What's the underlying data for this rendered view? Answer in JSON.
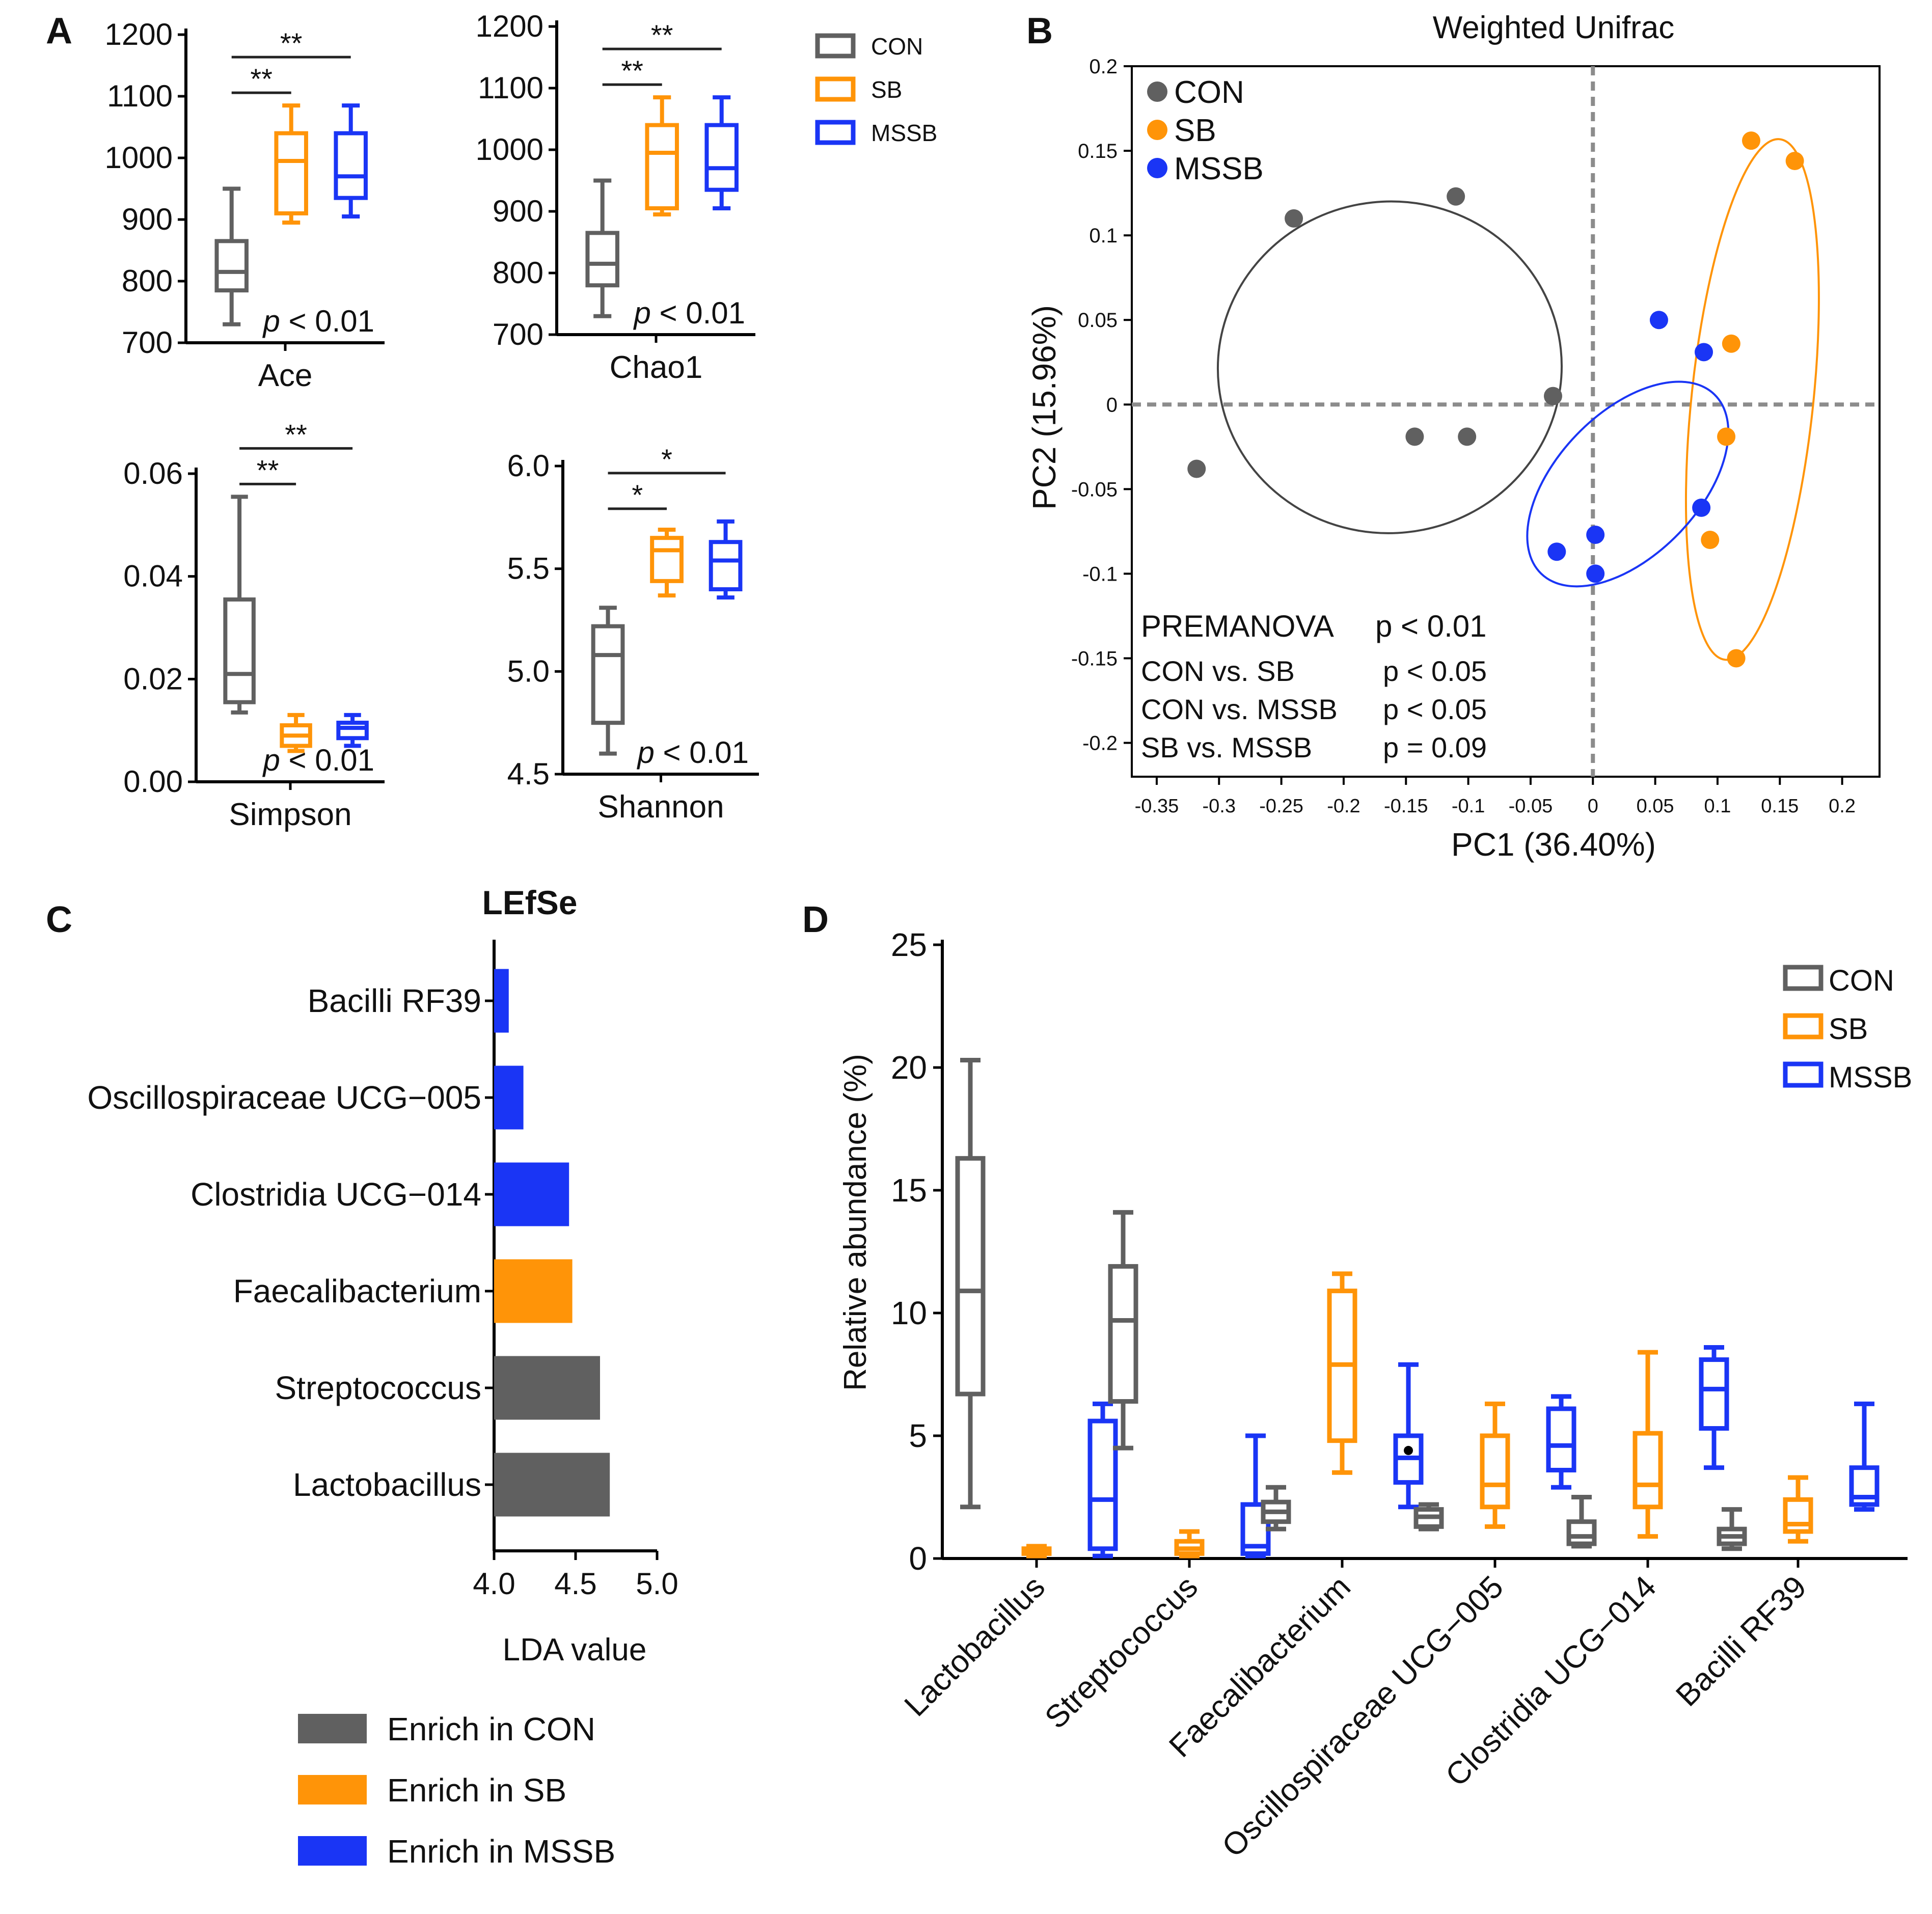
{
  "colors": {
    "CON": "#606060",
    "SB": "#FF9408",
    "MSSB": "#1A35F5",
    "axis": "#000000",
    "grid_line": "#8c8c8c"
  },
  "panel_labels": {
    "a": "A",
    "b": "B",
    "c": "C",
    "d": "D"
  },
  "legend_a": {
    "items": [
      {
        "name": "CON",
        "color": "#606060"
      },
      {
        "name": "SB",
        "color": "#FF9408"
      },
      {
        "name": "MSSB",
        "color": "#1A35F5"
      }
    ]
  },
  "legend_d": {
    "items": [
      {
        "name": "CON",
        "color": "#606060"
      },
      {
        "name": "SB",
        "color": "#FF9408"
      },
      {
        "name": "MSSB",
        "color": "#1A35F5"
      }
    ]
  },
  "chart_data": [
    {
      "type": "boxplot",
      "title": "",
      "xlabel": "Ace",
      "ylabel": "",
      "ylim": [
        700,
        1200
      ],
      "yticks": [
        "700",
        "800",
        "900",
        "1000",
        "1100",
        "1200"
      ],
      "pvalue": {
        "p": "p",
        "text": " < 0.01"
      },
      "groups": [
        {
          "name": "CON",
          "min": 730,
          "q1": 785,
          "median": 815,
          "q3": 865,
          "max": 950
        },
        {
          "name": "SB",
          "min": 895,
          "q1": 910,
          "median": 995,
          "q3": 1040,
          "max": 1085
        },
        {
          "name": "MSSB",
          "min": 905,
          "q1": 935,
          "median": 970,
          "q3": 1040,
          "max": 1085
        }
      ],
      "significance": [
        {
          "from": "CON",
          "to": "SB",
          "label": "**"
        },
        {
          "from": "CON",
          "to": "MSSB",
          "label": "**"
        }
      ]
    },
    {
      "type": "boxplot",
      "title": "",
      "xlabel": "Chao1",
      "ylabel": "",
      "ylim": [
        700,
        1200
      ],
      "yticks": [
        "700",
        "800",
        "900",
        "1000",
        "1100",
        "1200"
      ],
      "pvalue": {
        "p": "p",
        "text": " < 0.01"
      },
      "groups": [
        {
          "name": "CON",
          "min": 730,
          "q1": 780,
          "median": 815,
          "q3": 865,
          "max": 950
        },
        {
          "name": "SB",
          "min": 895,
          "q1": 905,
          "median": 995,
          "q3": 1040,
          "max": 1085
        },
        {
          "name": "MSSB",
          "min": 905,
          "q1": 935,
          "median": 970,
          "q3": 1040,
          "max": 1085
        }
      ],
      "significance": [
        {
          "from": "CON",
          "to": "SB",
          "label": "**"
        },
        {
          "from": "CON",
          "to": "MSSB",
          "label": "**"
        }
      ]
    },
    {
      "type": "boxplot",
      "title": "",
      "xlabel": "Simpson",
      "ylabel": "",
      "ylim": [
        0.0,
        0.06
      ],
      "yticks": [
        "0.00",
        "0.02",
        "0.04",
        "0.06"
      ],
      "pvalue": {
        "p": "p",
        "text": " < 0.01"
      },
      "groups": [
        {
          "name": "CON",
          "min": 0.0135,
          "q1": 0.0155,
          "median": 0.021,
          "q3": 0.0355,
          "max": 0.0555
        },
        {
          "name": "SB",
          "min": 0.006,
          "q1": 0.007,
          "median": 0.009,
          "q3": 0.011,
          "max": 0.013
        },
        {
          "name": "MSSB",
          "min": 0.007,
          "q1": 0.0085,
          "median": 0.0105,
          "q3": 0.0115,
          "max": 0.013
        }
      ],
      "significance": [
        {
          "from": "CON",
          "to": "SB",
          "label": "**"
        },
        {
          "from": "CON",
          "to": "MSSB",
          "label": "**"
        }
      ]
    },
    {
      "type": "boxplot",
      "title": "",
      "xlabel": "Shannon",
      "ylabel": "",
      "ylim": [
        4.5,
        6.0
      ],
      "yticks": [
        "4.5",
        "5.0",
        "5.5",
        "6.0"
      ],
      "pvalue": {
        "p": "p",
        "text": " < 0.01"
      },
      "groups": [
        {
          "name": "CON",
          "min": 4.6,
          "q1": 4.75,
          "median": 5.08,
          "q3": 5.22,
          "max": 5.31
        },
        {
          "name": "SB",
          "min": 5.37,
          "q1": 5.44,
          "median": 5.59,
          "q3": 5.65,
          "max": 5.69
        },
        {
          "name": "MSSB",
          "min": 5.36,
          "q1": 5.4,
          "median": 5.54,
          "q3": 5.63,
          "max": 5.73
        }
      ],
      "significance": [
        {
          "from": "CON",
          "to": "SB",
          "label": "*"
        },
        {
          "from": "CON",
          "to": "MSSB",
          "label": "*"
        }
      ]
    },
    {
      "type": "scatter",
      "title": "Weighted Unifrac",
      "xlabel": "PC1 (36.40%)",
      "ylabel": "PC2 (15.96%)",
      "xlim": [
        -0.37,
        0.23
      ],
      "ylim": [
        -0.22,
        0.2
      ],
      "xticks": [
        "-0.35",
        "-0.3",
        "-0.25",
        "-0.2",
        "-0.15",
        "-0.1",
        "-0.05",
        "0",
        "0.05",
        "0.1",
        "0.15",
        "0.2"
      ],
      "yticks": [
        "0.2",
        "0.15",
        "0.1",
        "0.05",
        "0",
        "-0.05",
        "-0.1",
        "-0.15",
        "-0.2"
      ],
      "series": [
        {
          "name": "CON",
          "points": [
            [
              -0.24,
              0.11
            ],
            [
              -0.11,
              0.123
            ],
            [
              -0.032,
              0.005
            ],
            [
              -0.143,
              -0.019
            ],
            [
              -0.101,
              -0.019
            ],
            [
              -0.318,
              -0.038
            ]
          ]
        },
        {
          "name": "SB",
          "points": [
            [
              0.127,
              0.156
            ],
            [
              0.162,
              0.144
            ],
            [
              0.111,
              0.036
            ],
            [
              0.107,
              -0.019
            ],
            [
              0.094,
              -0.08
            ],
            [
              0.115,
              -0.15
            ]
          ]
        },
        {
          "name": "MSSB",
          "points": [
            [
              0.053,
              0.05
            ],
            [
              0.089,
              0.031
            ],
            [
              0.087,
              -0.061
            ],
            [
              -0.029,
              -0.087
            ],
            [
              0.002,
              -0.077
            ],
            [
              0.002,
              -0.1
            ]
          ]
        }
      ],
      "ellipses": [
        {
          "name": "CON",
          "cx": -0.163,
          "cy": 0.022,
          "rx": 0.138,
          "ry": 0.098,
          "angle": -6
        },
        {
          "name": "SB",
          "cx": 0.128,
          "cy": 0.003,
          "rx": 0.21,
          "ry": 0.036,
          "angle": 96
        },
        {
          "name": "MSSB",
          "cx": 0.028,
          "cy": -0.047,
          "rx": 0.1,
          "ry": 0.042,
          "angle": -46
        }
      ],
      "annotation": {
        "title": "PREMANOVA",
        "title_p": "p < 0.01",
        "rows": [
          {
            "label": "CON vs. SB",
            "p": "p < 0.05"
          },
          {
            "label": "CON vs. MSSB",
            "p": "p < 0.05"
          },
          {
            "label": "SB    vs. MSSB",
            "p": "p = 0.09"
          }
        ]
      }
    },
    {
      "type": "bar",
      "orientation": "horizontal",
      "title": "LEfSe",
      "xlabel": "LDA value",
      "xlim": [
        4.0,
        5.0
      ],
      "xticks": [
        "4.0",
        "4.5",
        "5.0"
      ],
      "categories": [
        "Bacilli RF39",
        "Oscillospiraceae UCG−005",
        "Clostridia UCG−014",
        "Faecalibacterium",
        "Streptococcus",
        "Lactobacillus"
      ],
      "values": [
        4.09,
        4.18,
        4.46,
        4.48,
        4.65,
        4.71
      ],
      "groups": [
        "MSSB",
        "MSSB",
        "MSSB",
        "SB",
        "CON",
        "CON"
      ],
      "legend": [
        {
          "name": "Enrich in CON",
          "color": "#606060"
        },
        {
          "name": "Enrich in SB",
          "color": "#FF9408"
        },
        {
          "name": "Enrich in MSSB",
          "color": "#1A35F5"
        }
      ]
    },
    {
      "type": "boxplot",
      "title": "",
      "xlabel": "",
      "ylabel": "Relative abundance (%)",
      "ylim": [
        0,
        25
      ],
      "yticks": [
        "0",
        "5",
        "10",
        "15",
        "20",
        "25"
      ],
      "categories": [
        "Lactobacillus",
        "Streptococcus",
        "Faecalibacterium",
        "Oscillospiraceae UCG−005",
        "Clostridia UCG−014",
        "Bacilli RF39"
      ],
      "series": [
        {
          "name": "CON",
          "boxes": [
            {
              "min": 2.1,
              "q1": 6.7,
              "median": 10.9,
              "q3": 16.3,
              "max": 20.3
            },
            {
              "min": 4.5,
              "q1": 6.4,
              "median": 9.7,
              "q3": 11.9,
              "max": 14.1
            },
            {
              "min": 1.2,
              "q1": 1.5,
              "median": 1.9,
              "q3": 2.3,
              "max": 2.9
            },
            {
              "min": 1.2,
              "q1": 1.3,
              "median": 1.7,
              "q3": 2.0,
              "max": 2.2,
              "outlier": 4.4
            },
            {
              "min": 0.5,
              "q1": 0.6,
              "median": 0.9,
              "q3": 1.5,
              "max": 2.5
            },
            {
              "min": 0.4,
              "q1": 0.6,
              "median": 0.9,
              "q3": 1.2,
              "max": 2.0
            }
          ]
        },
        {
          "name": "SB",
          "boxes": [
            {
              "min": 0.1,
              "q1": 0.2,
              "median": 0.3,
              "q3": 0.4,
              "max": 0.5
            },
            {
              "min": 0.1,
              "q1": 0.2,
              "median": 0.4,
              "q3": 0.7,
              "max": 1.1
            },
            {
              "min": 3.5,
              "q1": 4.8,
              "median": 7.9,
              "q3": 10.9,
              "max": 11.6
            },
            {
              "min": 1.3,
              "q1": 2.1,
              "median": 3.0,
              "q3": 5.0,
              "max": 6.3
            },
            {
              "min": 0.9,
              "q1": 2.1,
              "median": 3.0,
              "q3": 5.1,
              "max": 8.4
            },
            {
              "min": 0.7,
              "q1": 1.1,
              "median": 1.4,
              "q3": 2.4,
              "max": 3.3
            }
          ]
        },
        {
          "name": "MSSB",
          "boxes": [
            {
              "min": 0.1,
              "q1": 0.4,
              "median": 2.4,
              "q3": 5.6,
              "max": 6.3
            },
            {
              "min": 0.1,
              "q1": 0.2,
              "median": 0.5,
              "q3": 2.2,
              "max": 5.0
            },
            {
              "min": 2.1,
              "q1": 3.1,
              "median": 4.1,
              "q3": 5.0,
              "max": 7.9
            },
            {
              "min": 2.9,
              "q1": 3.6,
              "median": 4.6,
              "q3": 6.1,
              "max": 6.6
            },
            {
              "min": 3.7,
              "q1": 5.3,
              "median": 6.9,
              "q3": 8.1,
              "max": 8.6
            },
            {
              "min": 2.0,
              "q1": 2.2,
              "median": 2.5,
              "q3": 3.7,
              "max": 6.3
            }
          ]
        }
      ]
    }
  ]
}
